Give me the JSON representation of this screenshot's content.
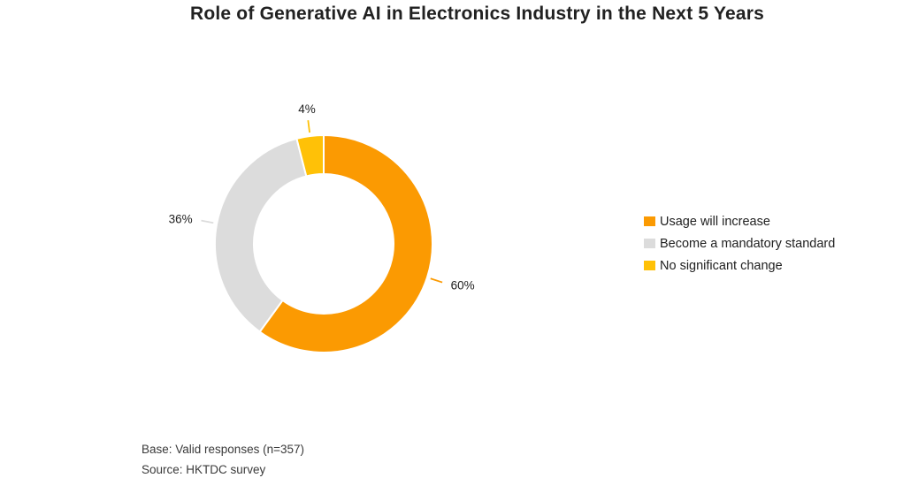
{
  "title": "Role of Generative AI in Electronics Industry in the Next 5 Years",
  "chart_data": {
    "type": "pie",
    "subtype": "donut",
    "title": "Role of Generative AI in Electronics Industry in the Next 5 Years",
    "start_angle_deg": 0,
    "direction": "clockwise",
    "inner_radius_ratio": 0.64,
    "legend_position": "right",
    "label_format": "percent",
    "slices": [
      {
        "label": "Usage will increase",
        "value": 60,
        "display": "60%",
        "color": "#FB9A02"
      },
      {
        "label": "Become a mandatory standard",
        "value": 36,
        "display": "36%",
        "color": "#DCDCDC"
      },
      {
        "label": "No significant change",
        "value": 4,
        "display": "4%",
        "color": "#FFC107"
      }
    ]
  },
  "footer": {
    "base_note": "Base: Valid responses (n=357)",
    "source_note": "Source: HKTDC survey"
  },
  "colors": {
    "background": "#FFFFFF",
    "text": "#212121",
    "slice_separator": "#FFFFFF"
  }
}
